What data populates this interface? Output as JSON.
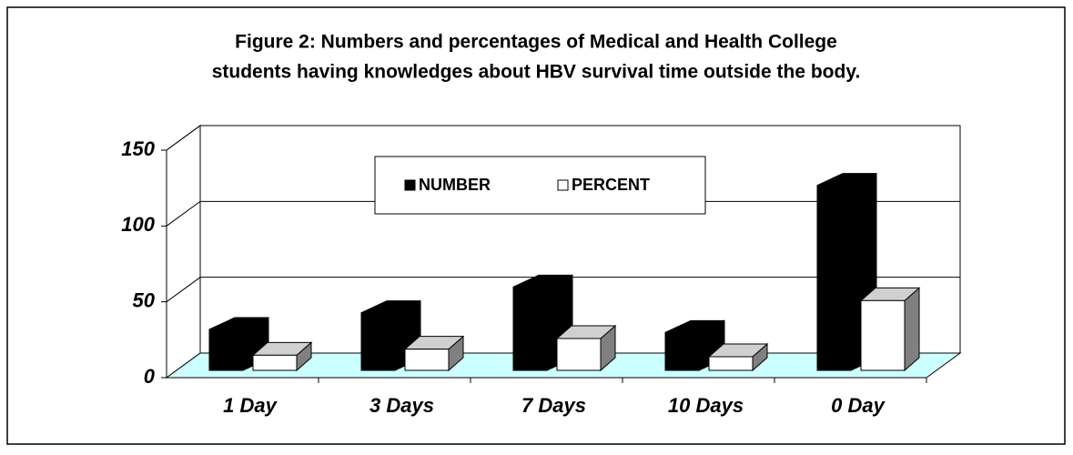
{
  "chart_data": {
    "type": "bar3d",
    "title": "Figure 2: Numbers and percentages of Medical and Health College students having knowledges about HBV survival time outside the body.",
    "categories": [
      "1 Day",
      "3 Days",
      "7 Days",
      "10 Days",
      "0 Day"
    ],
    "series": [
      {
        "name": "NUMBER",
        "color": "#000000",
        "values": [
          27,
          38,
          55,
          25,
          122
        ]
      },
      {
        "name": "PERCENT",
        "color": "#ffffff",
        "values": [
          10,
          14,
          21,
          9,
          46
        ]
      }
    ],
    "ylim": [
      0,
      150
    ],
    "yticks": [
      0,
      50,
      100,
      150
    ],
    "grid": true,
    "legend": "top"
  }
}
